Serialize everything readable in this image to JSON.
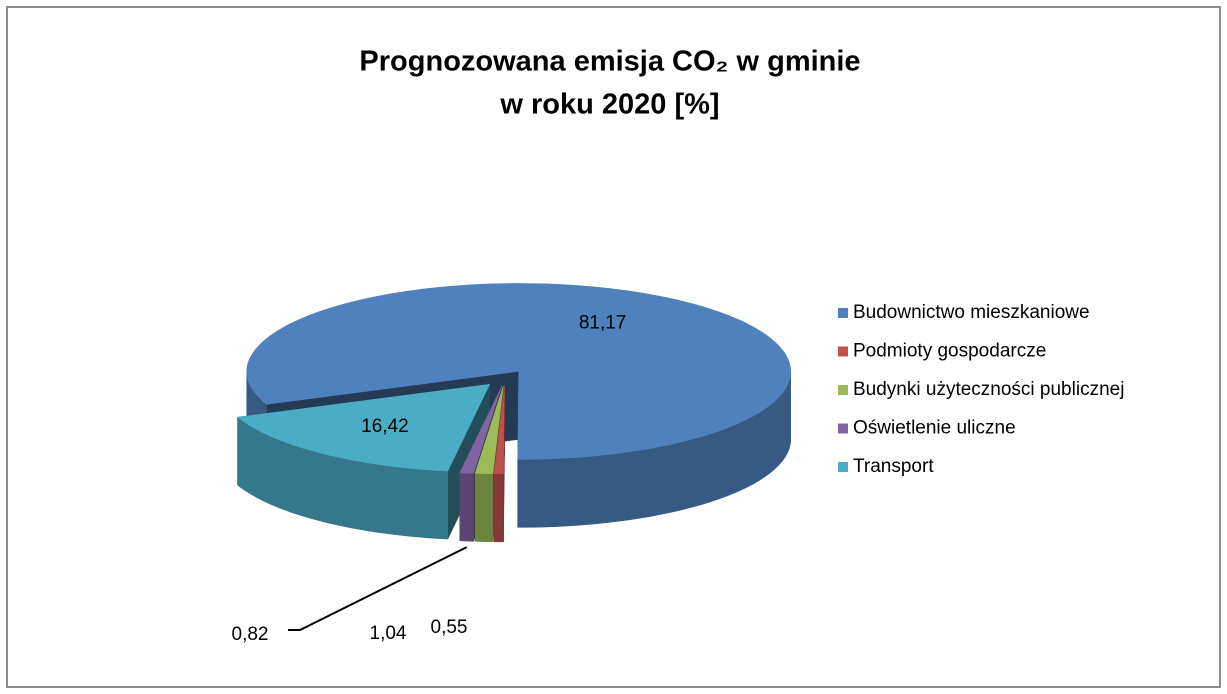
{
  "chart_data": {
    "type": "pie",
    "title": [
      "Prognozowana emisja CO₂ w gminie",
      "w roku 2020 [%]"
    ],
    "categories": [
      "Budownictwo mieszkaniowe",
      "Podmioty gospodarcze",
      "Budynki użyteczności publicznej",
      "Oświetlenie uliczne",
      "Transport"
    ],
    "values": [
      81.17,
      0.55,
      1.04,
      0.82,
      16.42
    ],
    "value_labels": [
      "81,17",
      "0,55",
      "1,04",
      "0,82",
      "16,42"
    ],
    "colors": [
      "#4f81bd",
      "#c0504d",
      "#9bbb59",
      "#8064a2",
      "#4bacc6"
    ],
    "legend": "right"
  }
}
